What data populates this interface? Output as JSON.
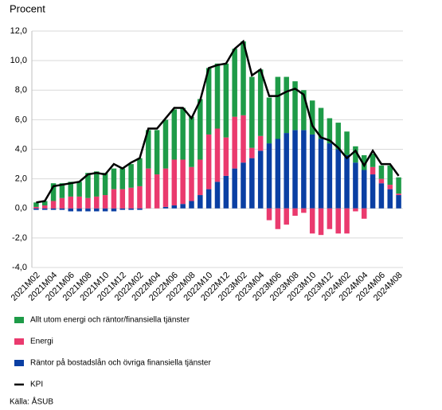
{
  "chart_data": {
    "type": "bar",
    "ylabel": "Procent",
    "source": "Källa: ÅSUB",
    "stacked": true,
    "grid": true,
    "categories": [
      "2021M02",
      null,
      "2021M04",
      null,
      "2021M06",
      null,
      "2021M08",
      null,
      "2021M10",
      null,
      "2021M12",
      null,
      "2022M02",
      null,
      "2022M04",
      null,
      "2022M06",
      null,
      "2022M08",
      null,
      "2022M10",
      null,
      "2022M12",
      null,
      "2023M02",
      null,
      "2023M04",
      null,
      "2023M06",
      null,
      "2023M08",
      null,
      "2023M10",
      null,
      "2023M12",
      null,
      "2024M02",
      null,
      "2024M04",
      null,
      "2024M06",
      null,
      "2024M08"
    ],
    "series": [
      {
        "name": "Räntor på bostadslån och övriga finansiella tjänster",
        "color": "#0a3fa3",
        "values": [
          -0.1,
          -0.1,
          -0.1,
          -0.1,
          -0.2,
          -0.2,
          -0.2,
          -0.2,
          -0.2,
          -0.2,
          -0.1,
          -0.1,
          -0.1,
          0,
          0,
          0.1,
          0.2,
          0.3,
          0.5,
          0.9,
          1.3,
          1.8,
          2.2,
          2.7,
          3.1,
          3.4,
          3.9,
          4.4,
          4.7,
          5.1,
          5.3,
          5.3,
          5.0,
          4.7,
          4.4,
          4.0,
          3.6,
          3.1,
          2.6,
          2.3,
          1.7,
          1.3,
          0.9
        ]
      },
      {
        "name": "Energi",
        "color": "#ea3a6e",
        "values": [
          0.1,
          0.2,
          0.5,
          0.7,
          0.8,
          0.8,
          0.7,
          0.8,
          0.9,
          1.3,
          1.3,
          1.4,
          1.5,
          2.7,
          2.3,
          2.6,
          3.1,
          3.0,
          2.3,
          2.4,
          3.7,
          3.6,
          2.6,
          3.5,
          3.2,
          0.7,
          1.0,
          -0.8,
          -1.4,
          -1.1,
          -0.5,
          -0.3,
          -1.7,
          -1.8,
          -1.4,
          -1.7,
          -1.7,
          -0.2,
          -0.7,
          0.5,
          0.3,
          0.3,
          0.1
        ]
      },
      {
        "name": "Allt utom energi och räntor/finansiella tjänster",
        "color": "#1e9b48",
        "values": [
          0.3,
          0.3,
          1.2,
          1.0,
          1.0,
          1.0,
          1.7,
          1.7,
          1.5,
          1.4,
          1.4,
          1.6,
          1.9,
          2.6,
          3.0,
          3.3,
          3.4,
          3.5,
          3.4,
          4.1,
          4.5,
          4.4,
          5.0,
          4.6,
          5.0,
          4.8,
          4.5,
          3.1,
          4.2,
          3.8,
          3.3,
          2.7,
          2.3,
          2.1,
          1.7,
          1.8,
          1.6,
          1.1,
          1.0,
          0.9,
          0.9,
          1.3,
          1.1
        ]
      }
    ],
    "line": {
      "name": "KPI",
      "color": "#000000",
      "values": [
        0.4,
        0.5,
        1.5,
        1.6,
        1.7,
        1.8,
        2.3,
        2.4,
        2.3,
        3.0,
        2.7,
        3.1,
        3.4,
        5.4,
        5.4,
        6.1,
        6.8,
        6.8,
        6.1,
        7.3,
        9.5,
        9.7,
        9.8,
        10.8,
        11.3,
        9.0,
        9.4,
        7.6,
        7.6,
        7.9,
        8.1,
        7.7,
        5.6,
        4.8,
        4.6,
        4.1,
        3.4,
        3.9,
        2.9,
        3.9,
        3.0,
        3.0,
        2.2
      ]
    },
    "legend_order": [
      2,
      1,
      0
    ],
    "ylim": [
      -4,
      12
    ],
    "yticks": [
      {
        "value": -4,
        "label": "-4,0"
      },
      {
        "value": -2,
        "label": "-2,0"
      },
      {
        "value": 0,
        "label": "0,0"
      },
      {
        "value": 2,
        "label": "2,0"
      },
      {
        "value": 4,
        "label": "4,0"
      },
      {
        "value": 6,
        "label": "6,0"
      },
      {
        "value": 8,
        "label": "8,0"
      },
      {
        "value": 10,
        "label": "10,0"
      },
      {
        "value": 12,
        "label": "12,0"
      }
    ]
  }
}
